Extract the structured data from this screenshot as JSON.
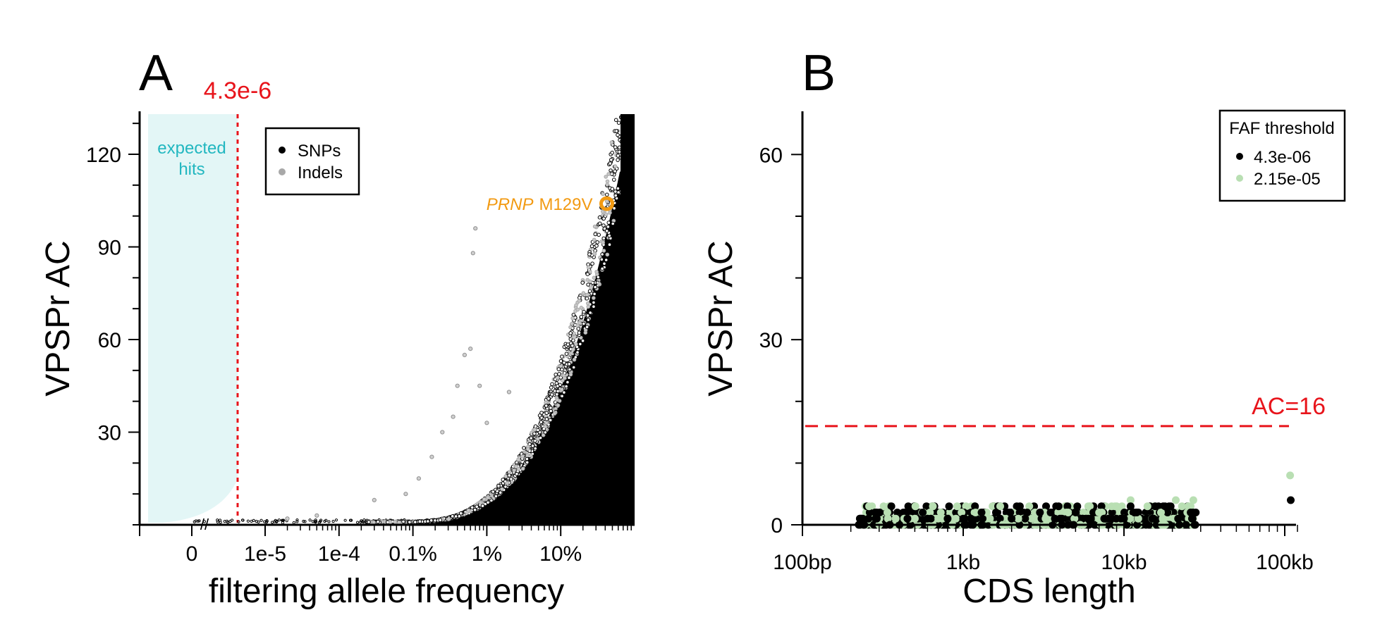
{
  "colors": {
    "snp": "#000000",
    "indel": "#a8a8a8",
    "expected_region": "#e3f6f6",
    "expected_text": "#22b7c0",
    "threshold": "#e8141b",
    "prnp": "#f29a12",
    "faf_high": "#b9dfb3"
  },
  "chart_data": [
    {
      "type": "scatter",
      "panel_label": "A",
      "xlabel": "filtering allele frequency",
      "ylabel": "VPSPr AC",
      "x_scale": "log",
      "x_tick_labels": [
        "0",
        "1e-5",
        "1e-4",
        "0.1%",
        "1%",
        "10%"
      ],
      "y_ticks": [
        30,
        60,
        90,
        120
      ],
      "ylim": [
        0,
        133
      ],
      "threshold_label": "4.3e-6",
      "threshold_value": 4.3e-06,
      "expected_region_label": [
        "expected",
        "hits"
      ],
      "legend": {
        "position": "top-left",
        "entries": [
          "SNPs",
          "Indels"
        ]
      },
      "annotation": {
        "gene": "PRNP",
        "variant": "M129V",
        "x": 0.42,
        "y": 104
      },
      "series": [
        {
          "name": "SNPs",
          "note": "dense cloud rising steeply near FAF 10%-100%",
          "points": [
            [
              0.0001,
              0.4
            ],
            [
              0.001,
              1
            ],
            [
              0.003,
              2
            ],
            [
              0.01,
              5
            ],
            [
              0.03,
              12
            ],
            [
              0.05,
              20
            ],
            [
              0.1,
              35
            ],
            [
              0.2,
              60
            ],
            [
              0.3,
              85
            ],
            [
              0.5,
              125
            ]
          ]
        },
        {
          "name": "Indels",
          "points": [
            [
              2e-05,
              2
            ],
            [
              5e-05,
              3
            ],
            [
              0.0003,
              8
            ],
            [
              0.0008,
              10
            ],
            [
              0.0012,
              15
            ],
            [
              0.0018,
              22
            ],
            [
              0.0025,
              30
            ],
            [
              0.0035,
              35
            ],
            [
              0.004,
              45
            ],
            [
              0.005,
              55
            ],
            [
              0.006,
              57
            ],
            [
              0.0065,
              88
            ],
            [
              0.007,
              96
            ],
            [
              0.008,
              45
            ],
            [
              0.01,
              33
            ],
            [
              0.02,
              43
            ]
          ]
        }
      ]
    },
    {
      "type": "scatter",
      "panel_label": "B",
      "xlabel": "CDS length",
      "ylabel": "VPSPr AC",
      "x_scale": "log",
      "x_tick_labels": [
        "100bp",
        "1kb",
        "10kb",
        "100kb"
      ],
      "y_ticks": [
        0,
        30,
        60
      ],
      "ylim": [
        0,
        67
      ],
      "threshold_label": "AC=16",
      "threshold_value": 16,
      "legend": {
        "title": "FAF threshold",
        "position": "top-right",
        "entries": [
          "4.3e-06",
          "2.15e-05"
        ]
      },
      "series": [
        {
          "name": "4.3e-06",
          "points": [
            [
              240,
              0
            ],
            [
              290,
              1
            ],
            [
              350,
              0
            ],
            [
              450,
              1
            ],
            [
              600,
              1
            ],
            [
              800,
              1
            ],
            [
              1000,
              1
            ],
            [
              1300,
              2
            ],
            [
              1600,
              2
            ],
            [
              2000,
              1
            ],
            [
              2500,
              2
            ],
            [
              3000,
              2
            ],
            [
              3500,
              2
            ],
            [
              4000,
              1
            ],
            [
              5000,
              2
            ],
            [
              6000,
              1
            ],
            [
              8000,
              1
            ],
            [
              10000,
              1
            ],
            [
              11000,
              3
            ],
            [
              12000,
              2
            ],
            [
              15000,
              1
            ],
            [
              18000,
              3
            ],
            [
              26000,
              2
            ],
            [
              26500,
              1
            ],
            [
              109000,
              4
            ]
          ]
        },
        {
          "name": "2.15e-05",
          "points": [
            [
              300,
              0
            ],
            [
              380,
              1
            ],
            [
              500,
              1
            ],
            [
              700,
              1
            ],
            [
              900,
              1
            ],
            [
              1400,
              2
            ],
            [
              1700,
              3
            ],
            [
              2200,
              1
            ],
            [
              3200,
              2
            ],
            [
              4500,
              2
            ],
            [
              6000,
              3
            ],
            [
              7000,
              2
            ],
            [
              9000,
              3
            ],
            [
              11000,
              4
            ],
            [
              14000,
              3
            ],
            [
              17000,
              2
            ],
            [
              21000,
              4
            ],
            [
              27000,
              4
            ],
            [
              108000,
              8
            ]
          ]
        }
      ]
    }
  ]
}
